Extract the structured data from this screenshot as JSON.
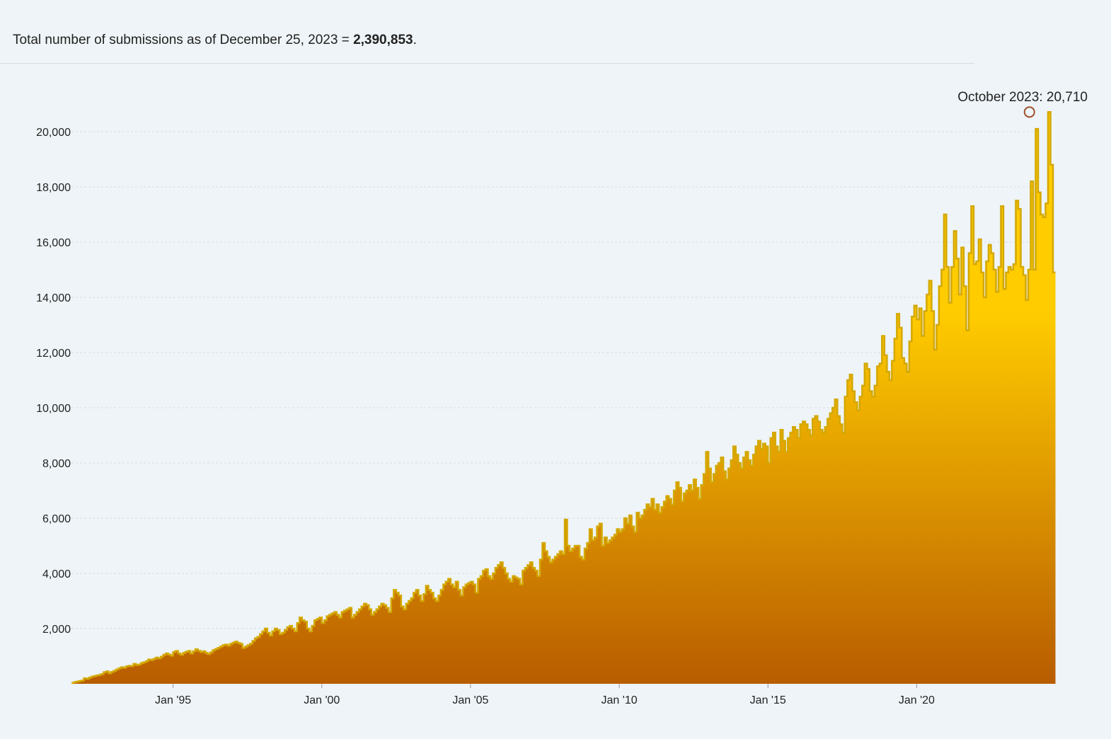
{
  "summary": {
    "prefix": "Total number of submissions as of December 25, 2023 = ",
    "total": "2,390,853",
    "suffix": "."
  },
  "colors": {
    "background": "#eef4f7",
    "fill_top": "#ffcc00",
    "fill_bottom": "#b85c00",
    "stroke": "#d4a800",
    "grid": "#d6dde1",
    "peak_marker": "#a0522d"
  },
  "chart_data": {
    "type": "area",
    "title": "",
    "xlabel": "",
    "ylabel": "",
    "x_start": "1991-08",
    "x_end": "2023-12",
    "x_ticks": [
      "Jan '95",
      "Jan '00",
      "Jan '05",
      "Jan '10",
      "Jan '15",
      "Jan '20"
    ],
    "y_ticks": [
      "2,000",
      "4,000",
      "6,000",
      "8,000",
      "10,000",
      "12,000",
      "14,000",
      "16,000",
      "18,000",
      "20,000"
    ],
    "ylim": [
      0,
      20710
    ],
    "grid": true,
    "peak_annotation": {
      "label": "October 2023: 20,710",
      "date": "2023-10",
      "value": 20710
    },
    "series": [
      {
        "values": [
          30,
          60,
          80,
          100,
          120,
          200,
          180,
          220,
          260,
          280,
          300,
          320,
          350,
          420,
          450,
          380,
          430,
          470,
          520,
          560,
          600,
          580,
          630,
          650,
          640,
          720,
          680,
          700,
          750,
          780,
          820,
          880,
          860,
          900,
          950,
          920,
          980,
          1050,
          1100,
          1060,
          1020,
          1150,
          1190,
          1100,
          1050,
          1120,
          1160,
          1190,
          1100,
          1180,
          1250,
          1200,
          1150,
          1180,
          1120,
          1080,
          1140,
          1220,
          1260,
          1300,
          1350,
          1400,
          1420,
          1380,
          1450,
          1490,
          1530,
          1480,
          1450,
          1300,
          1350,
          1400,
          1450,
          1550,
          1650,
          1700,
          1800,
          1900,
          2000,
          1850,
          1750,
          1900,
          2000,
          1950,
          1800,
          1850,
          1950,
          2050,
          2100,
          2000,
          1900,
          2200,
          2400,
          2300,
          2250,
          2000,
          1900,
          2100,
          2300,
          2350,
          2400,
          2200,
          2300,
          2450,
          2500,
          2550,
          2600,
          2500,
          2400,
          2600,
          2650,
          2700,
          2750,
          2400,
          2500,
          2600,
          2700,
          2800,
          2900,
          2850,
          2700,
          2500,
          2600,
          2700,
          2800,
          2900,
          2850,
          2750,
          2600,
          3100,
          3400,
          3300,
          3200,
          2800,
          2700,
          2900,
          3000,
          3100,
          3300,
          3400,
          3200,
          3000,
          3250,
          3550,
          3400,
          3300,
          3100,
          3000,
          3200,
          3400,
          3600,
          3700,
          3800,
          3600,
          3500,
          3700,
          3400,
          3200,
          3500,
          3600,
          3650,
          3700,
          3600,
          3300,
          3800,
          3900,
          4100,
          4150,
          3900,
          3800,
          4000,
          4200,
          4300,
          4400,
          4200,
          4000,
          3800,
          3700,
          3900,
          3850,
          3800,
          3600,
          4100,
          4200,
          4300,
          4400,
          4200,
          4100,
          3900,
          4500,
          5100,
          4800,
          4600,
          4400,
          4500,
          4600,
          4700,
          4800,
          4700,
          5950,
          5000,
          4800,
          4900,
          5000,
          5000,
          4600,
          4500,
          4900,
          5100,
          5600,
          5200,
          5300,
          5700,
          5800,
          5000,
          5300,
          5100,
          5200,
          5300,
          5400,
          5600,
          5500,
          5600,
          6000,
          5800,
          6100,
          5700,
          5500,
          6200,
          6000,
          6100,
          6300,
          6500,
          6400,
          6700,
          6300,
          6500,
          6200,
          6400,
          6600,
          6800,
          6700,
          6500,
          7000,
          7300,
          7100,
          6600,
          6900,
          7000,
          7200,
          7000,
          7400,
          7100,
          6700,
          7200,
          7600,
          8400,
          7800,
          7300,
          7600,
          7900,
          8000,
          8200,
          7700,
          7400,
          7800,
          8100,
          8600,
          8300,
          8000,
          7800,
          8200,
          8400,
          8100,
          7900,
          8300,
          8600,
          8800,
          8500,
          8700,
          8600,
          8000,
          8900,
          9100,
          8600,
          8400,
          9200,
          8800,
          8400,
          8900,
          9100,
          9300,
          9200,
          8900,
          9400,
          9500,
          9400,
          9200,
          9000,
          9600,
          9700,
          9500,
          9200,
          9100,
          9300,
          9600,
          9800,
          10000,
          10300,
          9700,
          9400,
          9100,
          10400,
          11000,
          11200,
          10600,
          10200,
          9900,
          10400,
          10800,
          11600,
          11400,
          10600,
          10400,
          10800,
          11500,
          11600,
          12600,
          11900,
          11300,
          11000,
          11700,
          12500,
          13400,
          12900,
          11800,
          11600,
          11300,
          12400,
          13300,
          13700,
          13200,
          13600,
          12600,
          13500,
          14100,
          14600,
          13500,
          12100,
          13000,
          14400,
          15000,
          17000,
          15100,
          13800,
          15100,
          16400,
          15400,
          14100,
          15800,
          14400,
          12800,
          15600,
          17300,
          15200,
          15300,
          16100,
          14900,
          14000,
          15300,
          15900,
          15600,
          15000,
          14200,
          15100,
          17300,
          14300,
          14900,
          15100,
          15000,
          15200,
          17500,
          17200,
          15100,
          14800,
          13900,
          15000,
          18200,
          15000,
          20100,
          17800,
          17000,
          16900,
          17400,
          20710,
          18800,
          14900
        ]
      }
    ]
  }
}
